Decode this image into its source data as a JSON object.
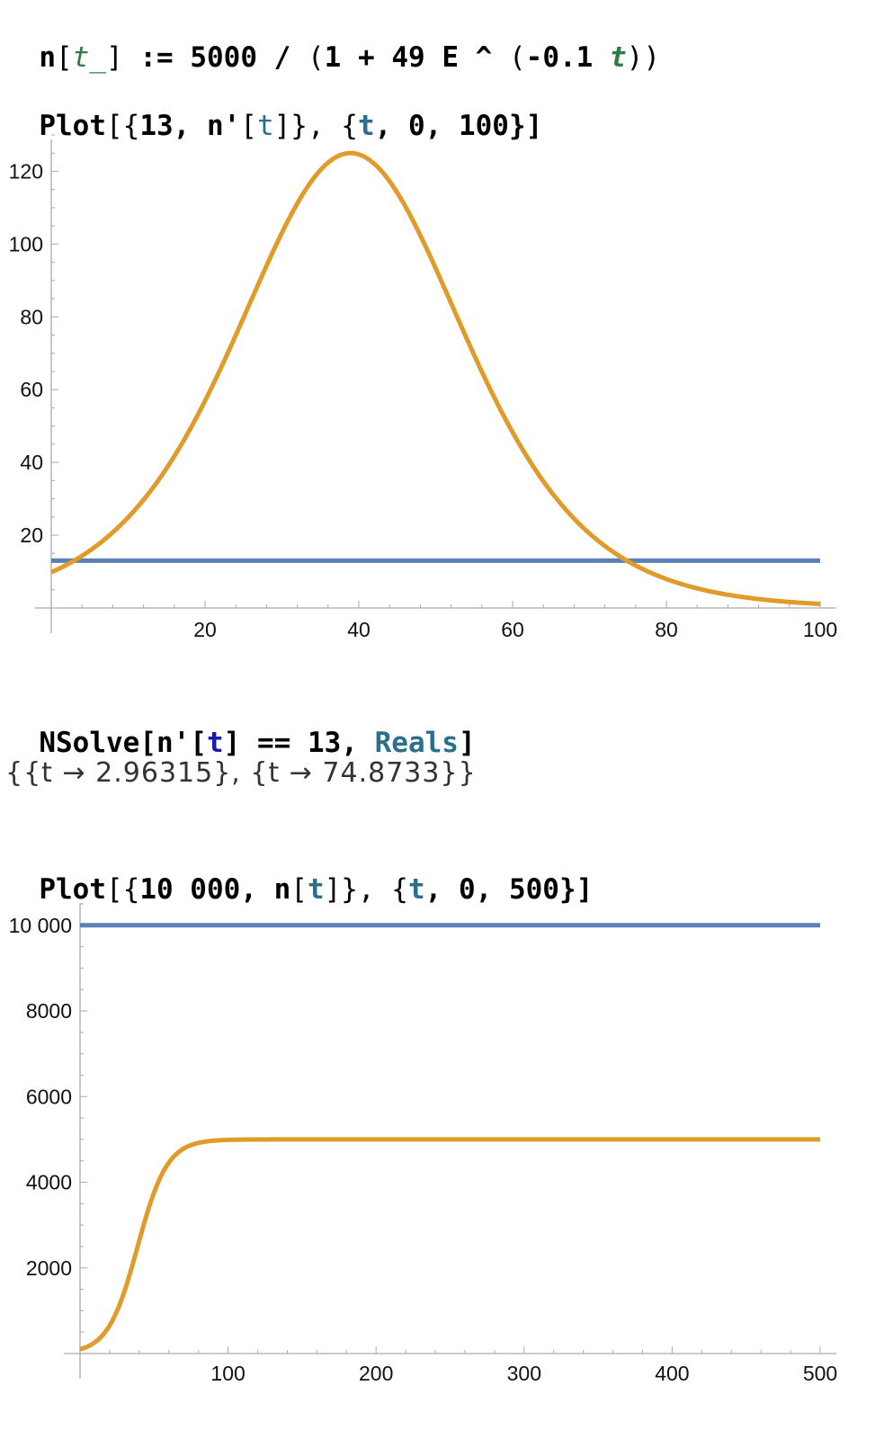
{
  "cells": {
    "def": {
      "fn": "n",
      "open": "[",
      "arg": "t_",
      "close": "]",
      "assign": " := ",
      "num": "5000",
      "slash": " / ",
      "lp": "(",
      "one": "1",
      "plus": " + ",
      "coef": "49",
      "e": " E",
      "caret": " ^ ",
      "lp2": "(",
      "neg": "-0.1",
      "sp": " ",
      "t": "t",
      "rp": "))"
    },
    "plot1": {
      "head": "Plot",
      "a": "[{",
      "b": "13, n'",
      "c": "[",
      "t": "t",
      "d": "]}, {",
      "t2": "t",
      "e": ", 0, 100}]"
    },
    "nsolve": {
      "head": "NSolve",
      "a": "[n'[",
      "t": "t",
      "b": "] == 13, ",
      "reals": "Reals",
      "c": "]"
    },
    "result": {
      "text": "{{t → 2.96315}, {t → 74.8733}}"
    },
    "plot2": {
      "head": "Plot",
      "a": "[{",
      "b": "10 000, n",
      "c": "[",
      "t": "t",
      "d": "]}, {",
      "t2": "t",
      "e": ", 0, 500}]"
    }
  },
  "colors": {
    "curve": "#e09b2a",
    "constant": "#5b7fb8",
    "axis": "#aaaaaa"
  },
  "chart_data": [
    {
      "type": "line",
      "xlim": [
        0,
        100
      ],
      "ylim": [
        0,
        130
      ],
      "x_ticks": [
        20,
        40,
        60,
        80,
        100
      ],
      "x_tick_labels": [
        "20",
        "40",
        "60",
        "80",
        "100"
      ],
      "y_ticks": [
        20,
        40,
        60,
        80,
        100,
        120
      ],
      "y_tick_labels": [
        "20",
        "40",
        "60",
        "80",
        "100",
        "120"
      ],
      "series": [
        {
          "kind": "constant",
          "value": 13,
          "color": "#5b7fb8"
        },
        {
          "kind": "derivative",
          "color": "#e09b2a"
        }
      ]
    },
    {
      "type": "line",
      "xlim": [
        0,
        500
      ],
      "ylim": [
        0,
        10500
      ],
      "x_ticks": [
        100,
        200,
        300,
        400,
        500
      ],
      "x_tick_labels": [
        "100",
        "200",
        "300",
        "400",
        "500"
      ],
      "y_ticks": [
        2000,
        4000,
        6000,
        8000,
        10000
      ],
      "y_tick_labels": [
        "2000",
        "4000",
        "6000",
        "8000",
        "10 000"
      ],
      "series": [
        {
          "kind": "constant",
          "value": 10000,
          "color": "#5b7fb8"
        },
        {
          "kind": "logistic",
          "color": "#e09b2a"
        }
      ]
    }
  ]
}
